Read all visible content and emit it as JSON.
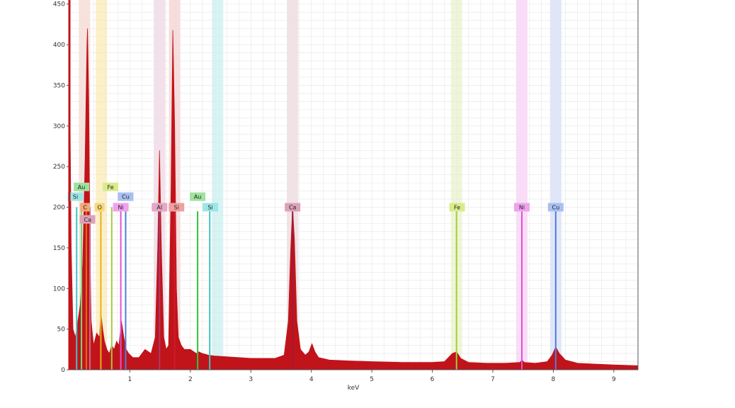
{
  "chart_data": {
    "type": "area",
    "xlabel": "keV",
    "ylabel": "",
    "xlim": [
      0,
      9.4
    ],
    "ylim": [
      0,
      455
    ],
    "x_ticks": [
      1,
      2,
      3,
      4,
      5,
      6,
      7,
      8,
      9
    ],
    "y_ticks": [
      0,
      50,
      100,
      150,
      200,
      250,
      300,
      350,
      400,
      450
    ],
    "grid": true,
    "spectrum": {
      "color": "#c0141a",
      "x": [
        0.0,
        0.03,
        0.06,
        0.1,
        0.14,
        0.18,
        0.22,
        0.26,
        0.29,
        0.3,
        0.32,
        0.34,
        0.36,
        0.4,
        0.45,
        0.5,
        0.52,
        0.55,
        0.58,
        0.62,
        0.66,
        0.7,
        0.74,
        0.78,
        0.82,
        0.86,
        0.9,
        0.94,
        0.98,
        1.05,
        1.15,
        1.25,
        1.35,
        1.42,
        1.46,
        1.49,
        1.52,
        1.56,
        1.6,
        1.64,
        1.68,
        1.71,
        1.74,
        1.77,
        1.8,
        1.85,
        1.9,
        2.0,
        2.1,
        2.14,
        2.2,
        2.3,
        2.4,
        2.6,
        2.8,
        3.0,
        3.2,
        3.4,
        3.55,
        3.62,
        3.66,
        3.69,
        3.72,
        3.76,
        3.82,
        3.9,
        3.96,
        4.01,
        4.06,
        4.12,
        4.3,
        4.6,
        5.0,
        5.5,
        6.0,
        6.2,
        6.33,
        6.4,
        6.47,
        6.6,
        6.9,
        7.2,
        7.45,
        7.48,
        7.52,
        7.7,
        7.9,
        7.98,
        8.04,
        8.1,
        8.2,
        8.4,
        8.7,
        9.0,
        9.4
      ],
      "y": [
        400,
        150,
        50,
        40,
        60,
        80,
        130,
        260,
        400,
        420,
        330,
        150,
        60,
        30,
        45,
        40,
        70,
        50,
        35,
        25,
        20,
        30,
        25,
        35,
        30,
        60,
        40,
        25,
        20,
        15,
        15,
        25,
        20,
        40,
        150,
        270,
        150,
        40,
        25,
        30,
        220,
        418,
        300,
        100,
        40,
        30,
        25,
        25,
        20,
        22,
        20,
        18,
        17,
        16,
        15,
        14,
        14,
        14,
        18,
        60,
        150,
        200,
        160,
        60,
        25,
        18,
        22,
        32,
        22,
        15,
        12,
        11,
        10,
        9,
        9,
        10,
        20,
        22,
        14,
        9,
        8,
        8,
        9,
        12,
        9,
        8,
        10,
        18,
        28,
        20,
        12,
        8,
        7,
        6,
        5
      ]
    },
    "element_lines": [
      {
        "element": "Si",
        "energy": 0.12,
        "height": 200,
        "color": "#3fc4c4"
      },
      {
        "element": "Au",
        "energy": 0.2,
        "height": 200,
        "color": "#74d87a"
      },
      {
        "element": "Ca",
        "energy": 0.34,
        "height": 200,
        "color": "#c56a8a"
      },
      {
        "element": "C",
        "energy": 0.28,
        "height": 200,
        "color": "#e06a1a"
      },
      {
        "element": "Ca",
        "energy": 0.34,
        "height": 190,
        "color": "#c56a8a"
      },
      {
        "element": "O",
        "energy": 0.52,
        "height": 200,
        "color": "#e8b01a"
      },
      {
        "element": "Fe",
        "energy": 0.7,
        "height": 200,
        "color": "#a6cc3a"
      },
      {
        "element": "Ni",
        "energy": 0.85,
        "height": 200,
        "color": "#e050d8"
      },
      {
        "element": "Cu",
        "energy": 0.93,
        "height": 200,
        "color": "#4f7be0"
      },
      {
        "element": "Al",
        "energy": 1.49,
        "height": 200,
        "color": "#a83a6a"
      },
      {
        "element": "Si",
        "energy": 1.74,
        "height": 200,
        "color": "#d01a2a"
      },
      {
        "element": "Au",
        "energy": 2.12,
        "height": 195,
        "color": "#34c03a"
      },
      {
        "element": "Si",
        "energy": 2.32,
        "height": 195,
        "color": "#3fc4c4"
      },
      {
        "element": "Ca",
        "energy": 3.69,
        "height": 195,
        "color": "#a01a3a"
      },
      {
        "element": "Fe",
        "energy": 6.4,
        "height": 195,
        "color": "#a6cc3a"
      },
      {
        "element": "Ni",
        "energy": 7.48,
        "height": 195,
        "color": "#e050d8"
      },
      {
        "element": "Cu",
        "energy": 8.04,
        "height": 195,
        "color": "#4f7be0"
      }
    ],
    "peak_labels": [
      {
        "text": "Au",
        "energy": 0.2,
        "level": 225,
        "bg": "#9ee29e"
      },
      {
        "text": "Fe",
        "energy": 0.68,
        "level": 225,
        "bg": "#d8ec8a"
      },
      {
        "text": "Si",
        "energy": 0.1,
        "level": 213,
        "bg": "#9ee6e6"
      },
      {
        "text": "Cu",
        "energy": 0.93,
        "level": 213,
        "bg": "#a9bff2"
      },
      {
        "text": "C",
        "energy": 0.26,
        "level": 200,
        "bg": "#f2a878"
      },
      {
        "text": "O",
        "energy": 0.5,
        "level": 200,
        "bg": "#f6d878"
      },
      {
        "text": "Ni",
        "energy": 0.85,
        "level": 200,
        "bg": "#f0a2ec"
      },
      {
        "text": "Ca",
        "energy": 0.3,
        "level": 185,
        "bg": "#dca2b8"
      },
      {
        "text": "Al",
        "energy": 1.49,
        "level": 200,
        "bg": "#e2a8c4"
      },
      {
        "text": "Si",
        "energy": 1.77,
        "level": 200,
        "bg": "#f0a0a0"
      },
      {
        "text": "Au",
        "energy": 2.12,
        "level": 213,
        "bg": "#9ee29e"
      },
      {
        "text": "Si",
        "energy": 2.33,
        "level": 200,
        "bg": "#9ee6e6"
      },
      {
        "text": "Ca",
        "energy": 3.69,
        "level": 200,
        "bg": "#dca2b8"
      },
      {
        "text": "Fe",
        "energy": 6.41,
        "level": 200,
        "bg": "#d8ec8a"
      },
      {
        "text": "Ni",
        "energy": 7.48,
        "level": 200,
        "bg": "#f0a2ec"
      },
      {
        "text": "Cu",
        "energy": 8.04,
        "level": 200,
        "bg": "#a9bff2"
      }
    ],
    "highlight_bands": [
      {
        "energy": 0.25,
        "color": "#f8e2dc"
      },
      {
        "energy": 0.53,
        "color": "#fdf0c6"
      },
      {
        "energy": 1.49,
        "color": "#f3e0ea"
      },
      {
        "energy": 1.74,
        "color": "#f8dcdc"
      },
      {
        "energy": 2.45,
        "color": "#d6f4f4"
      },
      {
        "energy": 3.69,
        "color": "#f1e2e6"
      },
      {
        "energy": 6.4,
        "color": "#eef6d8"
      },
      {
        "energy": 7.48,
        "color": "#fbdcf8"
      },
      {
        "energy": 8.04,
        "color": "#dfe6fa"
      }
    ]
  }
}
